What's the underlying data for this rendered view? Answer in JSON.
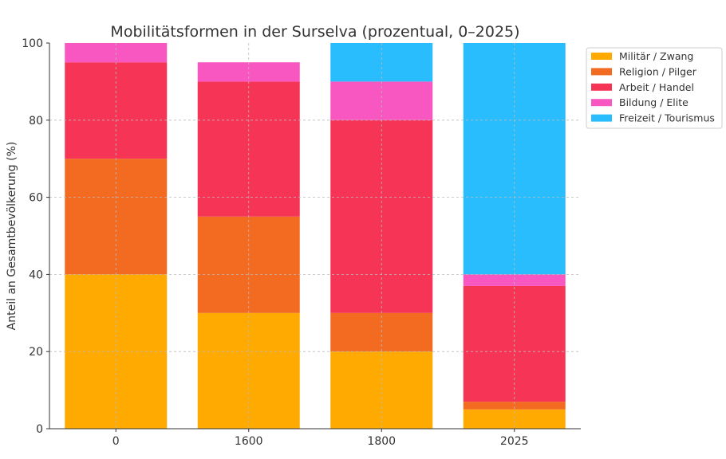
{
  "chart_data": {
    "type": "bar",
    "stacked": true,
    "title": "Mobilitätsformen in der Surselva (prozentual, 0–2025)",
    "xlabel": "",
    "ylabel": "Anteil an Gesamtbevölkerung (%)",
    "ylim": [
      0,
      100
    ],
    "yticks": [
      "0",
      "20",
      "40",
      "60",
      "80",
      "100"
    ],
    "categories": [
      "0",
      "1600",
      "1800",
      "2025"
    ],
    "grid": true,
    "legend_position": "top-right-outside",
    "series": [
      {
        "name": "Militär / Zwang",
        "color": "#FFAA00",
        "values": [
          40,
          30,
          20,
          5
        ]
      },
      {
        "name": "Religion / Pilger",
        "color": "#F26B21",
        "values": [
          30,
          25,
          10,
          2
        ]
      },
      {
        "name": "Arbeit / Handel",
        "color": "#F63455",
        "values": [
          25,
          35,
          50,
          30
        ]
      },
      {
        "name": "Bildung / Elite",
        "color": "#F857C1",
        "values": [
          5,
          5,
          10,
          3
        ]
      },
      {
        "name": "Freizeit / Tourismus",
        "color": "#29BDFD",
        "values": [
          0,
          0,
          10,
          60
        ]
      }
    ]
  }
}
